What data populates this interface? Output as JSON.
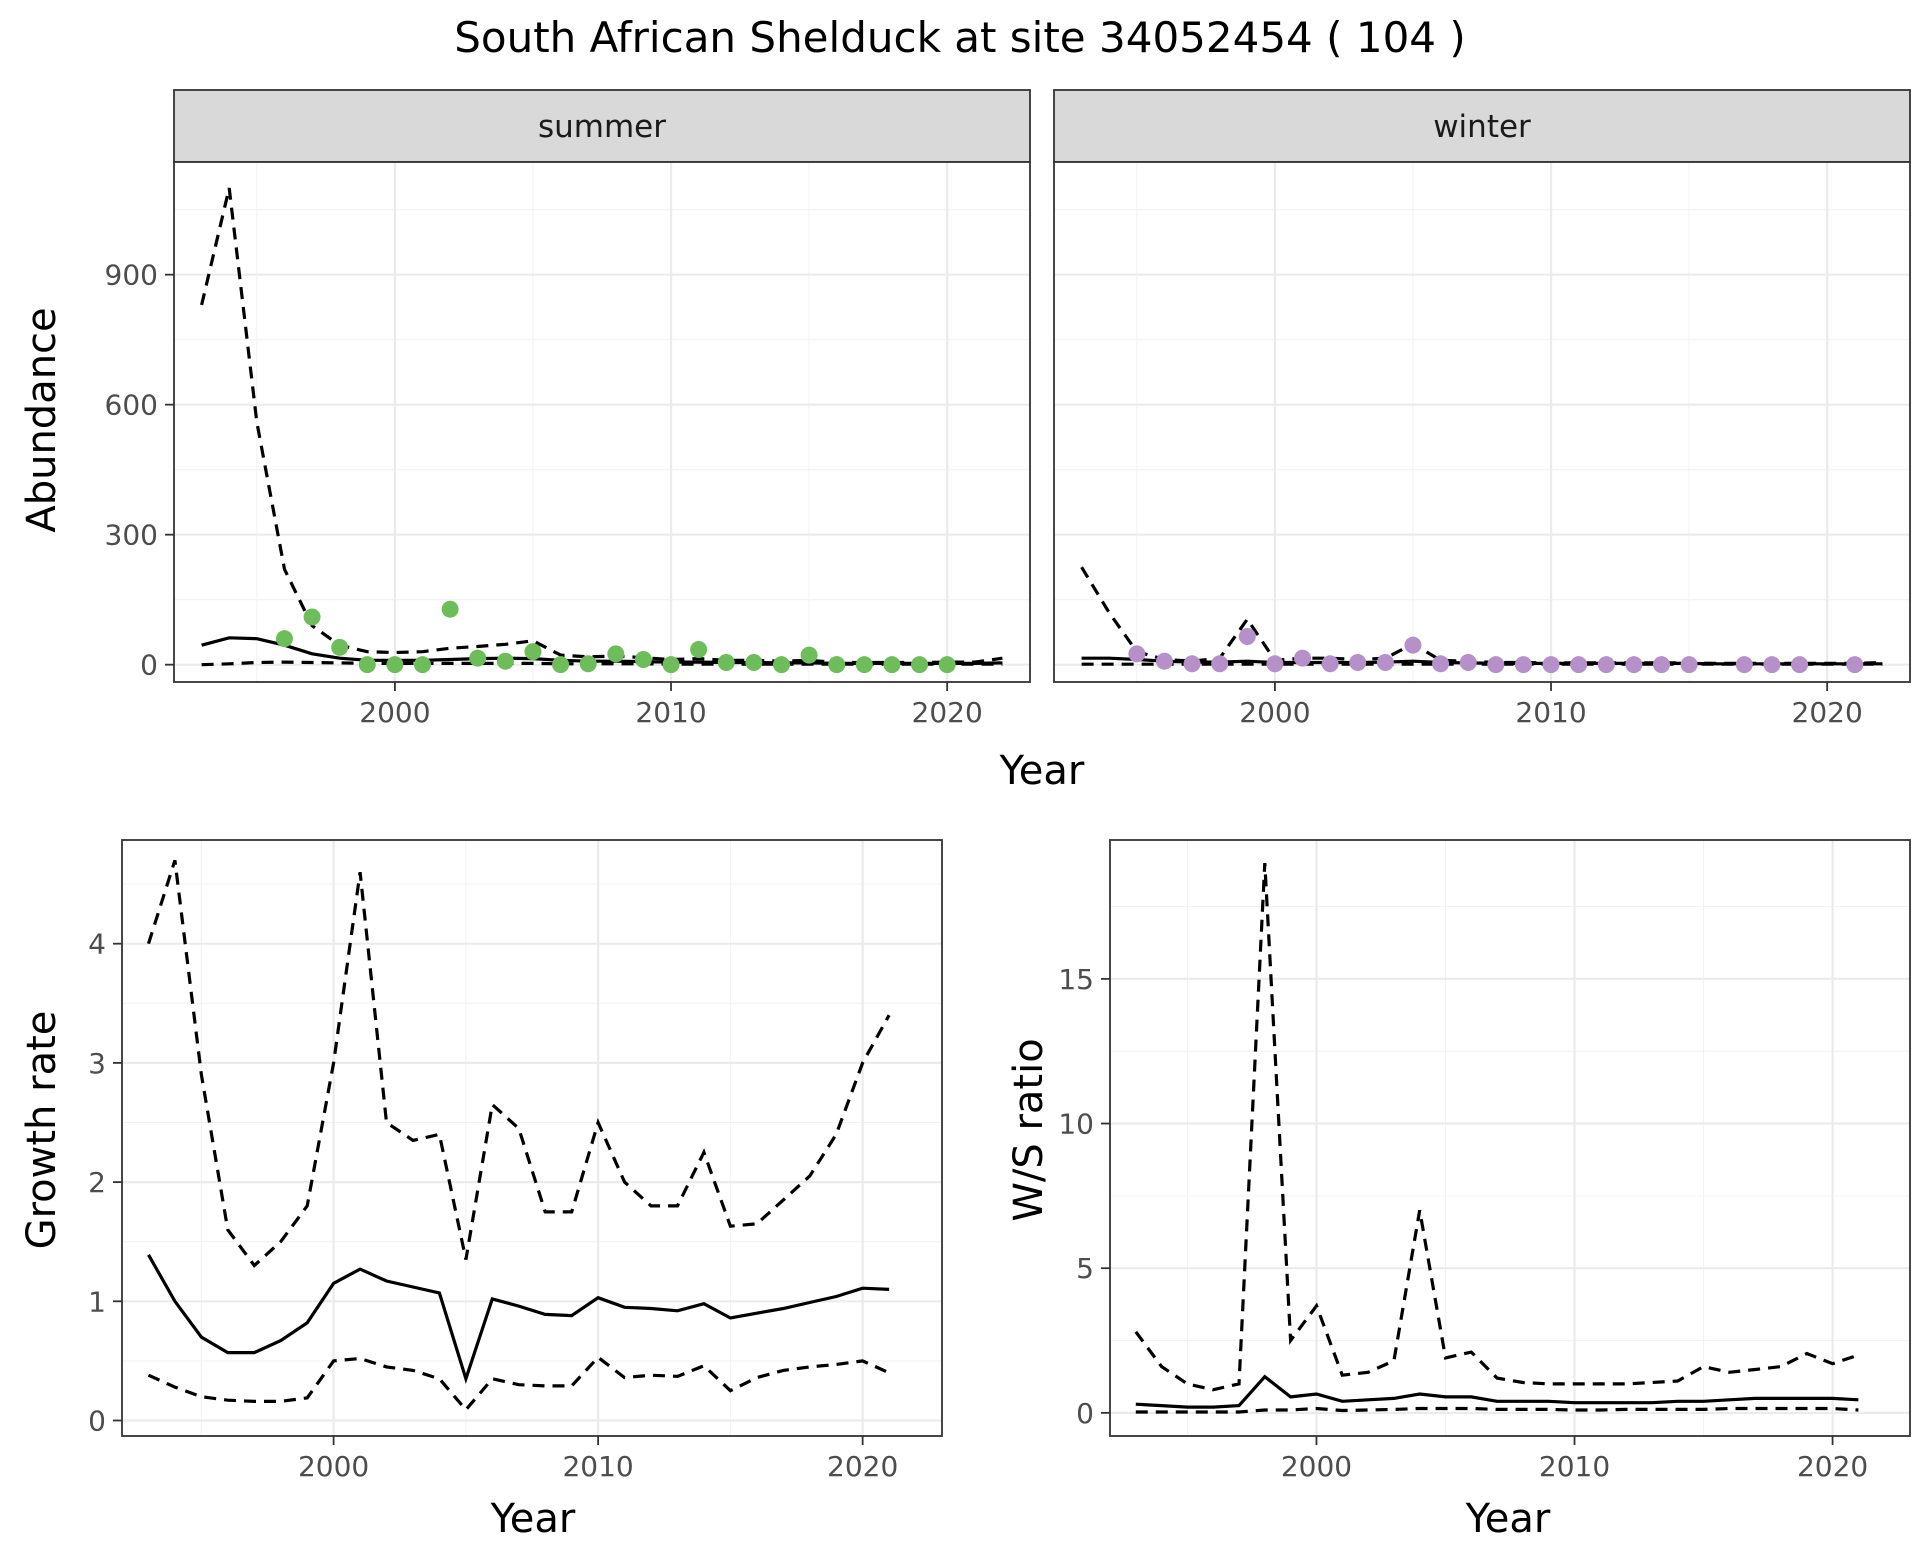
{
  "title": "South African Shelduck at site 34052454 ( 104 )",
  "chart_data": [
    {
      "id": "abundance",
      "type": "line",
      "facet": "summer",
      "xlim": [
        1992,
        2023
      ],
      "ylim": [
        -40,
        1160
      ],
      "y_ticks": [
        0,
        300,
        600,
        900
      ],
      "x_ticks": [
        2000,
        2010,
        2020
      ],
      "ylabel": "Abundance",
      "xlabel": "Year",
      "point_color": "#6dbd5a",
      "years": [
        1993,
        1994,
        1995,
        1996,
        1997,
        1998,
        1999,
        2000,
        2001,
        2002,
        2003,
        2004,
        2005,
        2006,
        2007,
        2008,
        2009,
        2010,
        2011,
        2012,
        2013,
        2014,
        2015,
        2016,
        2017,
        2018,
        2019,
        2020,
        2021,
        2022
      ],
      "mean": [
        45,
        62,
        60,
        45,
        25,
        15,
        10,
        10,
        10,
        12,
        14,
        15,
        14,
        10,
        8,
        8,
        7,
        6,
        6,
        5,
        5,
        4,
        4,
        3,
        3,
        3,
        3,
        3,
        3,
        4
      ],
      "upper": [
        830,
        1100,
        560,
        220,
        90,
        45,
        30,
        28,
        30,
        38,
        42,
        47,
        55,
        22,
        18,
        20,
        16,
        12,
        14,
        10,
        10,
        8,
        10,
        5,
        5,
        5,
        5,
        6,
        6,
        15
      ],
      "lower": [
        0,
        2,
        5,
        6,
        5,
        4,
        3,
        3,
        3,
        3,
        3,
        3,
        3,
        2,
        2,
        2,
        2,
        1,
        1,
        1,
        1,
        1,
        1,
        1,
        1,
        1,
        1,
        1,
        1,
        1
      ],
      "points": [
        [
          1996,
          60
        ],
        [
          1997,
          110
        ],
        [
          1998,
          40
        ],
        [
          1999,
          0
        ],
        [
          2000,
          0
        ],
        [
          2001,
          0
        ],
        [
          2002,
          128
        ],
        [
          2003,
          15
        ],
        [
          2004,
          8
        ],
        [
          2005,
          30
        ],
        [
          2006,
          0
        ],
        [
          2007,
          2
        ],
        [
          2008,
          25
        ],
        [
          2009,
          12
        ],
        [
          2010,
          0
        ],
        [
          2011,
          35
        ],
        [
          2012,
          5
        ],
        [
          2013,
          5
        ],
        [
          2014,
          0
        ],
        [
          2015,
          22
        ],
        [
          2016,
          0
        ],
        [
          2017,
          0
        ],
        [
          2018,
          0
        ],
        [
          2019,
          0
        ],
        [
          2020,
          0
        ]
      ]
    },
    {
      "id": "abundance",
      "type": "line",
      "facet": "winter",
      "xlim": [
        1992,
        2023
      ],
      "ylim": [
        -40,
        1160
      ],
      "x_ticks": [
        2000,
        2010,
        2020
      ],
      "point_color": "#b590c9",
      "years": [
        1993,
        1994,
        1995,
        1996,
        1997,
        1998,
        1999,
        2000,
        2001,
        2002,
        2003,
        2004,
        2005,
        2006,
        2007,
        2008,
        2009,
        2010,
        2011,
        2012,
        2013,
        2014,
        2015,
        2016,
        2017,
        2018,
        2019,
        2020,
        2021,
        2022
      ],
      "mean": [
        15,
        15,
        12,
        8,
        6,
        6,
        8,
        5,
        5,
        5,
        5,
        6,
        8,
        5,
        4,
        3,
        3,
        3,
        3,
        3,
        3,
        3,
        3,
        2,
        2,
        2,
        2,
        2,
        2,
        2
      ],
      "upper": [
        225,
        120,
        30,
        12,
        8,
        15,
        105,
        10,
        15,
        15,
        12,
        15,
        48,
        10,
        8,
        5,
        5,
        4,
        4,
        4,
        4,
        4,
        4,
        3,
        3,
        3,
        3,
        3,
        3,
        5
      ],
      "lower": [
        1,
        1,
        1,
        1,
        1,
        1,
        1,
        1,
        1,
        1,
        1,
        1,
        1,
        1,
        1,
        1,
        1,
        1,
        1,
        1,
        1,
        1,
        1,
        1,
        1,
        1,
        1,
        1,
        1,
        1
      ],
      "points": [
        [
          1995,
          25
        ],
        [
          1996,
          8
        ],
        [
          1997,
          2
        ],
        [
          1998,
          2
        ],
        [
          1999,
          65
        ],
        [
          2000,
          2
        ],
        [
          2001,
          15
        ],
        [
          2002,
          2
        ],
        [
          2003,
          5
        ],
        [
          2004,
          5
        ],
        [
          2005,
          45
        ],
        [
          2006,
          2
        ],
        [
          2007,
          5
        ],
        [
          2008,
          0
        ],
        [
          2009,
          0
        ],
        [
          2010,
          0
        ],
        [
          2011,
          0
        ],
        [
          2012,
          0
        ],
        [
          2013,
          0
        ],
        [
          2014,
          0
        ],
        [
          2015,
          0
        ],
        [
          2017,
          0
        ],
        [
          2018,
          0
        ],
        [
          2019,
          0
        ],
        [
          2021,
          0
        ]
      ]
    },
    {
      "id": "growth",
      "type": "line",
      "xlim": [
        1992,
        2023
      ],
      "ylim": [
        -0.13,
        4.87
      ],
      "y_ticks": [
        0,
        1,
        2,
        3,
        4
      ],
      "x_ticks": [
        2000,
        2010,
        2020
      ],
      "ylabel": "Growth rate",
      "xlabel": "Year",
      "years": [
        1993,
        1994,
        1995,
        1996,
        1997,
        1998,
        1999,
        2000,
        2001,
        2002,
        2003,
        2004,
        2005,
        2006,
        2007,
        2008,
        2009,
        2010,
        2011,
        2012,
        2013,
        2014,
        2015,
        2016,
        2017,
        2018,
        2019,
        2020,
        2021
      ],
      "mean": [
        1.39,
        1.0,
        0.7,
        0.57,
        0.57,
        0.67,
        0.82,
        1.15,
        1.27,
        1.17,
        1.12,
        1.07,
        0.35,
        1.02,
        0.96,
        0.89,
        0.88,
        1.03,
        0.95,
        0.94,
        0.92,
        0.98,
        0.86,
        0.9,
        0.94,
        0.99,
        1.04,
        1.11,
        1.1
      ],
      "upper": [
        4.0,
        4.7,
        2.9,
        1.6,
        1.3,
        1.5,
        1.8,
        3.0,
        4.6,
        2.5,
        2.35,
        2.4,
        1.35,
        2.65,
        2.45,
        1.75,
        1.75,
        2.5,
        2.0,
        1.8,
        1.8,
        2.25,
        1.63,
        1.65,
        1.85,
        2.05,
        2.4,
        3.0,
        3.4
      ],
      "lower": [
        0.38,
        0.28,
        0.2,
        0.17,
        0.16,
        0.16,
        0.19,
        0.5,
        0.52,
        0.45,
        0.42,
        0.35,
        0.09,
        0.35,
        0.3,
        0.29,
        0.29,
        0.53,
        0.36,
        0.38,
        0.37,
        0.46,
        0.25,
        0.36,
        0.42,
        0.45,
        0.47,
        0.5,
        0.4
      ]
    },
    {
      "id": "ratio",
      "type": "line",
      "xlim": [
        1992,
        2023
      ],
      "ylim": [
        -0.8,
        19.8
      ],
      "y_ticks": [
        0,
        5,
        10,
        15
      ],
      "x_ticks": [
        2000,
        2010,
        2020
      ],
      "ylabel": "W/S ratio",
      "xlabel": "Year",
      "years": [
        1993,
        1994,
        1995,
        1996,
        1997,
        1998,
        1999,
        2000,
        2001,
        2002,
        2003,
        2004,
        2005,
        2006,
        2007,
        2008,
        2009,
        2010,
        2011,
        2012,
        2013,
        2014,
        2015,
        2016,
        2017,
        2018,
        2019,
        2020,
        2021
      ],
      "mean": [
        0.3,
        0.25,
        0.2,
        0.2,
        0.25,
        1.25,
        0.55,
        0.65,
        0.4,
        0.45,
        0.5,
        0.65,
        0.55,
        0.55,
        0.4,
        0.4,
        0.4,
        0.35,
        0.35,
        0.35,
        0.35,
        0.4,
        0.4,
        0.45,
        0.5,
        0.5,
        0.5,
        0.5,
        0.45
      ],
      "upper": [
        2.8,
        1.6,
        1.0,
        0.8,
        1.0,
        19.0,
        2.5,
        3.7,
        1.3,
        1.4,
        1.8,
        7.0,
        1.9,
        2.1,
        1.2,
        1.05,
        1.0,
        1.0,
        1.0,
        1.0,
        1.05,
        1.1,
        1.6,
        1.4,
        1.5,
        1.6,
        2.05,
        1.7,
        2.0
      ],
      "lower": [
        0.03,
        0.03,
        0.03,
        0.03,
        0.03,
        0.1,
        0.1,
        0.15,
        0.08,
        0.1,
        0.12,
        0.15,
        0.15,
        0.15,
        0.12,
        0.12,
        0.12,
        0.1,
        0.1,
        0.12,
        0.12,
        0.12,
        0.12,
        0.15,
        0.15,
        0.15,
        0.15,
        0.15,
        0.1
      ]
    }
  ],
  "facet_strips": [
    "summer",
    "winter"
  ],
  "tick_labels": {
    "x": [
      "2000",
      "2010",
      "2020"
    ],
    "abundance_y": [
      "0",
      "300",
      "600",
      "900"
    ],
    "growth_y": [
      "0",
      "1",
      "2",
      "3",
      "4"
    ],
    "ratio_y": [
      "0",
      "5",
      "10",
      "15"
    ]
  }
}
